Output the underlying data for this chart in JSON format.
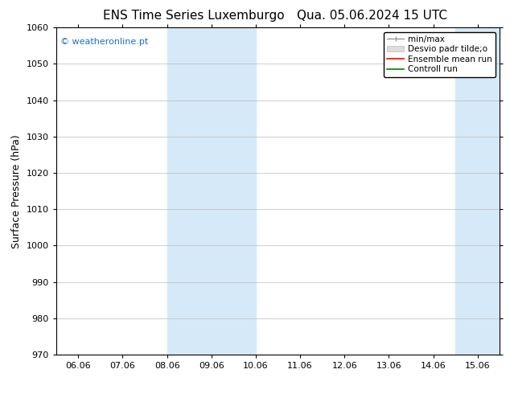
{
  "title_left": "ENS Time Series Luxemburgo",
  "title_right": "Qua. 05.06.2024 15 UTC",
  "ylabel": "Surface Pressure (hPa)",
  "ylim": [
    970,
    1060
  ],
  "yticks": [
    970,
    980,
    990,
    1000,
    1010,
    1020,
    1030,
    1040,
    1050,
    1060
  ],
  "xtick_labels": [
    "06.06",
    "07.06",
    "08.06",
    "09.06",
    "10.06",
    "11.06",
    "12.06",
    "13.06",
    "14.06",
    "15.06"
  ],
  "xtick_positions": [
    0,
    1,
    2,
    3,
    4,
    5,
    6,
    7,
    8,
    9
  ],
  "shaded_regions": [
    {
      "xmin": 2.0,
      "xmax": 3.0,
      "color": "#d6e9f8"
    },
    {
      "xmin": 3.0,
      "xmax": 4.0,
      "color": "#d6e9f8"
    },
    {
      "xmin": 8.5,
      "xmax": 9.0,
      "color": "#d6e9f8"
    },
    {
      "xmin": 9.0,
      "xmax": 9.5,
      "color": "#d6e9f8"
    }
  ],
  "watermark_text": "© weatheronline.pt",
  "watermark_color": "#1a6ec0",
  "bg_color": "#ffffff",
  "grid_color": "#bbbbbb",
  "title_fontsize": 11,
  "axis_label_fontsize": 9,
  "tick_fontsize": 8,
  "legend_fontsize": 7.5
}
